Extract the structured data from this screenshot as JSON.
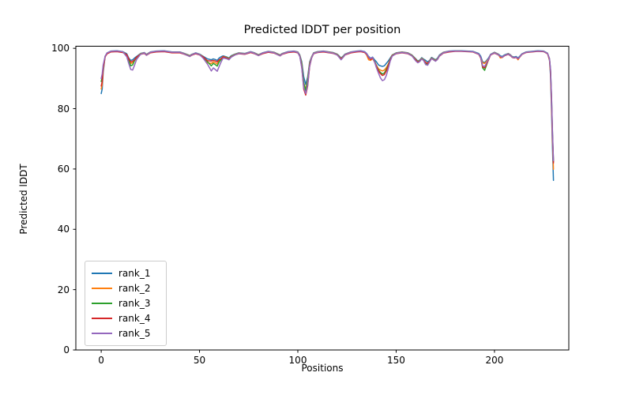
{
  "chart_data": {
    "type": "line",
    "title": "Predicted lDDT per position",
    "xlabel": "Positions",
    "ylabel": "Predicted lDDT",
    "xlim": [
      -12.9,
      237.8
    ],
    "ylim": [
      0,
      100.7
    ],
    "x_ticks": [
      0,
      50,
      100,
      150,
      200
    ],
    "y_ticks": [
      0,
      20,
      40,
      60,
      80,
      100
    ],
    "grid": false,
    "legend_position": "lower left",
    "axis_color": "#000000",
    "x": [
      0,
      0.5,
      1,
      2,
      3,
      5,
      8,
      11,
      13,
      14,
      15,
      16,
      17,
      18,
      20,
      22,
      23,
      25,
      28,
      32,
      36,
      40,
      42,
      44,
      45,
      46,
      48,
      50,
      52,
      54,
      56,
      57,
      58,
      59,
      60,
      61,
      62,
      64,
      65,
      66,
      68,
      70,
      73,
      76,
      78,
      80,
      82,
      85,
      88,
      90,
      91,
      92,
      95,
      98,
      100,
      101,
      102,
      103,
      104,
      105,
      106,
      107,
      108,
      110,
      113,
      116,
      118,
      120,
      121,
      122,
      123,
      124,
      127,
      130,
      132,
      134,
      135,
      136,
      137,
      138,
      139,
      140,
      141,
      142,
      143,
      144,
      145,
      146,
      147,
      148,
      150,
      153,
      156,
      158,
      160,
      161,
      162,
      163,
      164,
      165,
      166,
      167,
      168,
      169,
      170,
      171,
      172,
      174,
      177,
      180,
      183,
      186,
      189,
      192,
      193,
      194,
      195,
      196,
      197,
      198,
      200,
      202,
      203,
      204,
      205,
      207,
      208,
      209,
      210,
      211,
      212,
      213,
      214,
      216,
      219,
      222,
      225,
      227,
      228,
      228.5,
      229,
      229.5,
      230
    ],
    "series": [
      {
        "name": "rank_1",
        "color": "#1f77b4",
        "y": [
          85,
          86.5,
          92,
          97.4,
          98.5,
          99.1,
          99.2,
          98.9,
          98.2,
          96.8,
          96,
          96.2,
          96.8,
          97.3,
          98.3,
          98.6,
          98,
          98.8,
          99.1,
          99.2,
          98.8,
          98.8,
          98.4,
          97.9,
          97.6,
          98,
          98.5,
          98.1,
          97.3,
          96.5,
          96.2,
          96.5,
          96.3,
          96,
          96.8,
          97.2,
          97.5,
          97.1,
          96.8,
          97.5,
          98.1,
          98.5,
          98.3,
          98.9,
          98.5,
          97.9,
          98.5,
          99,
          98.7,
          98.1,
          97.8,
          98.3,
          98.9,
          99.1,
          98.8,
          97.8,
          95.5,
          90.5,
          88,
          90.5,
          95.5,
          97.2,
          98.5,
          98.9,
          99.1,
          98.8,
          98.6,
          98.1,
          97.5,
          96.8,
          97.4,
          98.1,
          98.8,
          99.1,
          99.2,
          98.9,
          98.3,
          97.3,
          96.7,
          97.1,
          96.2,
          95.5,
          94.5,
          94.2,
          94,
          94.2,
          95,
          95.8,
          96.8,
          97.8,
          98.5,
          98.8,
          98.5,
          97.8,
          96.5,
          95.8,
          96.1,
          96.9,
          96.4,
          96,
          95.5,
          96,
          97,
          96.6,
          96.2,
          96.7,
          97.8,
          98.7,
          99.1,
          99.2,
          99.2,
          99.1,
          99,
          98.3,
          97.4,
          95.5,
          95.3,
          96,
          96.8,
          98,
          98.7,
          98.1,
          97.5,
          97.3,
          97.8,
          98.3,
          97.9,
          97.3,
          97.1,
          97.3,
          96.8,
          97.5,
          98.2,
          98.8,
          99,
          99.2,
          99.1,
          98.4,
          96,
          91,
          80,
          67,
          56.2
        ]
      },
      {
        "name": "rank_2",
        "color": "#ff7f0e",
        "y": [
          86.5,
          88,
          93,
          97.3,
          98.4,
          99,
          99.1,
          98.8,
          97.8,
          96,
          95,
          95.2,
          96,
          97,
          98.2,
          98.5,
          97.9,
          98.7,
          99,
          99.1,
          98.7,
          98.7,
          98.3,
          97.8,
          97.5,
          97.9,
          98.4,
          98,
          97.1,
          95.2,
          95,
          95.5,
          95.2,
          94.8,
          95.8,
          96.5,
          97.3,
          96.9,
          96.6,
          97.3,
          98,
          98.4,
          98.2,
          98.8,
          98.4,
          97.8,
          98.4,
          98.9,
          98.6,
          98,
          97.7,
          98.2,
          98.8,
          99,
          98.7,
          97.6,
          94.8,
          88.5,
          86.5,
          89.5,
          95,
          97.1,
          98.4,
          98.8,
          99,
          98.7,
          98.5,
          98,
          97.3,
          96.6,
          97.2,
          98,
          98.7,
          99,
          99.1,
          98.7,
          97.8,
          96.2,
          96,
          96.6,
          95.5,
          94.3,
          93.2,
          92.8,
          92.5,
          92.8,
          93.6,
          94.8,
          96.4,
          97.7,
          98.4,
          98.7,
          98.4,
          97.7,
          96.3,
          95.6,
          95.9,
          96.7,
          96.2,
          95.3,
          95,
          95.8,
          96.8,
          96.4,
          96,
          96.5,
          97.6,
          98.6,
          99,
          99.1,
          99.1,
          99,
          98.9,
          98.1,
          96.8,
          95.2,
          95,
          95.7,
          96.5,
          97.9,
          98.6,
          98,
          96.8,
          97,
          97.6,
          98.2,
          97.8,
          97.2,
          96.9,
          97.1,
          96.2,
          97.3,
          98.1,
          98.7,
          98.9,
          99.1,
          99,
          98.3,
          96.2,
          92,
          82,
          70,
          59.9
        ]
      },
      {
        "name": "rank_3",
        "color": "#2ca02c",
        "y": [
          89,
          90.5,
          94,
          97.3,
          98.3,
          98.9,
          99,
          98.7,
          97.6,
          96.2,
          94.2,
          94.5,
          96,
          97,
          98.1,
          98.4,
          97.8,
          98.6,
          98.9,
          99,
          98.6,
          98.6,
          98.2,
          97.7,
          97.4,
          97.8,
          98.3,
          97.9,
          97,
          95.6,
          94.2,
          95,
          94.6,
          94.1,
          95.5,
          96.3,
          97.2,
          96.8,
          96.5,
          97.2,
          97.9,
          98.3,
          98.1,
          98.7,
          98.3,
          97.7,
          98.3,
          98.8,
          98.5,
          97.9,
          97.6,
          98.1,
          98.7,
          98.9,
          98.6,
          97.5,
          94.5,
          88.5,
          86,
          89,
          94.5,
          97,
          98.3,
          98.7,
          98.9,
          98.6,
          98.4,
          97.9,
          97.2,
          96.4,
          97.1,
          97.9,
          98.6,
          98.9,
          99,
          98.7,
          98.1,
          97,
          96.4,
          96.9,
          95.8,
          94.2,
          92.8,
          92,
          91.5,
          91.8,
          93,
          94.5,
          96.3,
          97.6,
          98.3,
          98.6,
          98.3,
          97.6,
          96.2,
          95.5,
          95.8,
          96.6,
          96.1,
          94.9,
          94.7,
          95.7,
          96.7,
          96.3,
          95.9,
          96.4,
          97.5,
          98.5,
          98.9,
          99.1,
          99.1,
          99,
          98.9,
          98.1,
          97,
          93.5,
          92.7,
          94.5,
          96.3,
          97.9,
          98.5,
          97.9,
          97.3,
          97.1,
          97.6,
          98.1,
          97.7,
          97.1,
          96.9,
          97.1,
          96.6,
          97.3,
          98.1,
          98.7,
          98.9,
          99.1,
          99,
          98.3,
          96.5,
          93,
          84,
          72,
          62.5
        ]
      },
      {
        "name": "rank_4",
        "color": "#d62728",
        "y": [
          87.5,
          89,
          93.5,
          97.2,
          98.2,
          98.8,
          98.9,
          98.6,
          97.9,
          96.5,
          95.5,
          95.7,
          96.2,
          97.1,
          98,
          98.3,
          97.7,
          98.5,
          98.8,
          98.9,
          98.5,
          98.5,
          98.1,
          97.6,
          97.3,
          97.7,
          98.2,
          97.8,
          97.1,
          95.9,
          95.8,
          96,
          95.8,
          95.5,
          96.2,
          96.6,
          97.2,
          96.7,
          96.4,
          97.1,
          97.8,
          98.2,
          98,
          98.6,
          98.2,
          97.6,
          98.2,
          98.7,
          98.4,
          97.8,
          97.5,
          98,
          98.6,
          98.8,
          98.5,
          97.4,
          93.8,
          86.5,
          84.5,
          87.5,
          94,
          96.8,
          98.2,
          98.6,
          98.8,
          98.5,
          98.3,
          97.8,
          97.1,
          96.5,
          97,
          97.8,
          98.5,
          98.8,
          98.9,
          98.6,
          98,
          96.9,
          96.3,
          96.8,
          95.6,
          94,
          92.5,
          91.6,
          91,
          91.3,
          92.5,
          94.2,
          96.2,
          97.5,
          98.2,
          98.5,
          98.2,
          97.5,
          96.1,
          95.4,
          95.7,
          96.5,
          96,
          95.3,
          95,
          95.6,
          96.6,
          96.2,
          95.8,
          96.3,
          97.4,
          98.4,
          98.8,
          99,
          99,
          98.9,
          98.8,
          98,
          96.8,
          93.8,
          93.5,
          94.8,
          96.2,
          97.8,
          98.4,
          97.8,
          97.2,
          97,
          97.5,
          98,
          97.6,
          97,
          96.8,
          97,
          96.5,
          97.2,
          98,
          98.6,
          98.8,
          99,
          98.9,
          98.2,
          96.3,
          92.5,
          83,
          71,
          62
        ]
      },
      {
        "name": "rank_5",
        "color": "#9467bd",
        "y": [
          90,
          91.5,
          94.5,
          97.4,
          98.5,
          99,
          99.1,
          98.85,
          97.2,
          95,
          93,
          92.8,
          94.5,
          96.3,
          98,
          98.5,
          97.7,
          98.7,
          99,
          99.1,
          98.7,
          98.7,
          98.2,
          97.6,
          97.3,
          97.8,
          98.4,
          97.9,
          96.6,
          94.8,
          92.5,
          93.5,
          93,
          92.4,
          94,
          95.5,
          96.8,
          96.5,
          96.2,
          97,
          97.8,
          98.3,
          98.1,
          98.8,
          98.3,
          97.6,
          98.4,
          98.9,
          98.5,
          97.8,
          97.5,
          98.1,
          98.8,
          99,
          98.6,
          97.3,
          93.5,
          87,
          85,
          88,
          94.2,
          96.9,
          98.3,
          98.7,
          99,
          98.6,
          98.4,
          97.8,
          97,
          96.2,
          97,
          97.9,
          98.7,
          99,
          99.1,
          98.8,
          98.2,
          97.1,
          96.6,
          97,
          95.5,
          93.5,
          91.8,
          90.2,
          89.3,
          89.6,
          91,
          93.3,
          95.8,
          97.4,
          98.3,
          98.6,
          98.3,
          97.5,
          95.8,
          95.2,
          95.6,
          96.5,
          95.9,
          94.6,
          94.4,
          95.5,
          96.6,
          96.2,
          95.7,
          96.3,
          97.5,
          98.5,
          99,
          99.1,
          99.1,
          99,
          98.9,
          98.1,
          97,
          94.2,
          94,
          95.2,
          96.4,
          97.9,
          98.5,
          97.9,
          97.3,
          97.1,
          97.6,
          98.1,
          97.7,
          97.1,
          96.9,
          97.1,
          96.6,
          97.3,
          98.1,
          98.7,
          98.9,
          99.1,
          99,
          98.3,
          96.6,
          93.2,
          84.5,
          72.5,
          62.8
        ]
      }
    ]
  }
}
